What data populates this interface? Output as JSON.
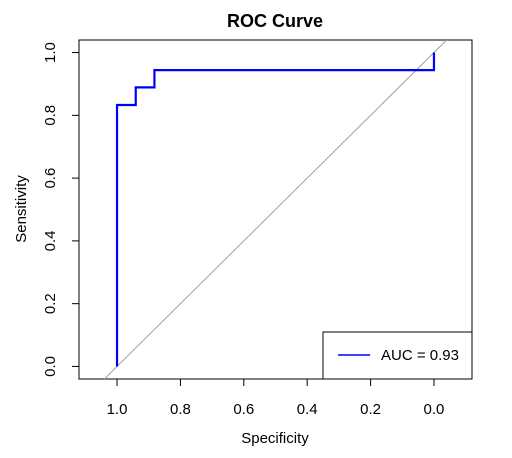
{
  "chart_data": {
    "type": "line",
    "title": "ROC Curve",
    "xlabel": "Specificity",
    "ylabel": "Sensitivity",
    "x_reversed": true,
    "xlim": [
      1.12,
      -0.12
    ],
    "ylim": [
      -0.04,
      1.04
    ],
    "x_ticks": [
      1.0,
      0.8,
      0.6,
      0.4,
      0.2,
      0.0
    ],
    "x_tick_labels": [
      "1.0",
      "0.8",
      "0.6",
      "0.4",
      "0.2",
      "0.0"
    ],
    "y_ticks": [
      0.0,
      0.2,
      0.4,
      0.6,
      0.8,
      1.0
    ],
    "y_tick_labels": [
      "0.0",
      "0.2",
      "0.4",
      "0.6",
      "0.8",
      "1.0"
    ],
    "grid": false,
    "legend_position": "bottom-right",
    "series": [
      {
        "name": "AUC = 0.93",
        "color": "#0000ff",
        "x": [
          1.0,
          1.0,
          0.941,
          0.941,
          0.882,
          0.882,
          0.0,
          0.0
        ],
        "y": [
          0.0,
          0.833,
          0.833,
          0.889,
          0.889,
          0.944,
          0.944,
          1.0
        ]
      }
    ],
    "reference_line": {
      "color": "#a0a0a0",
      "from": [
        1.0,
        0.0
      ],
      "to": [
        0.0,
        1.0
      ]
    }
  }
}
